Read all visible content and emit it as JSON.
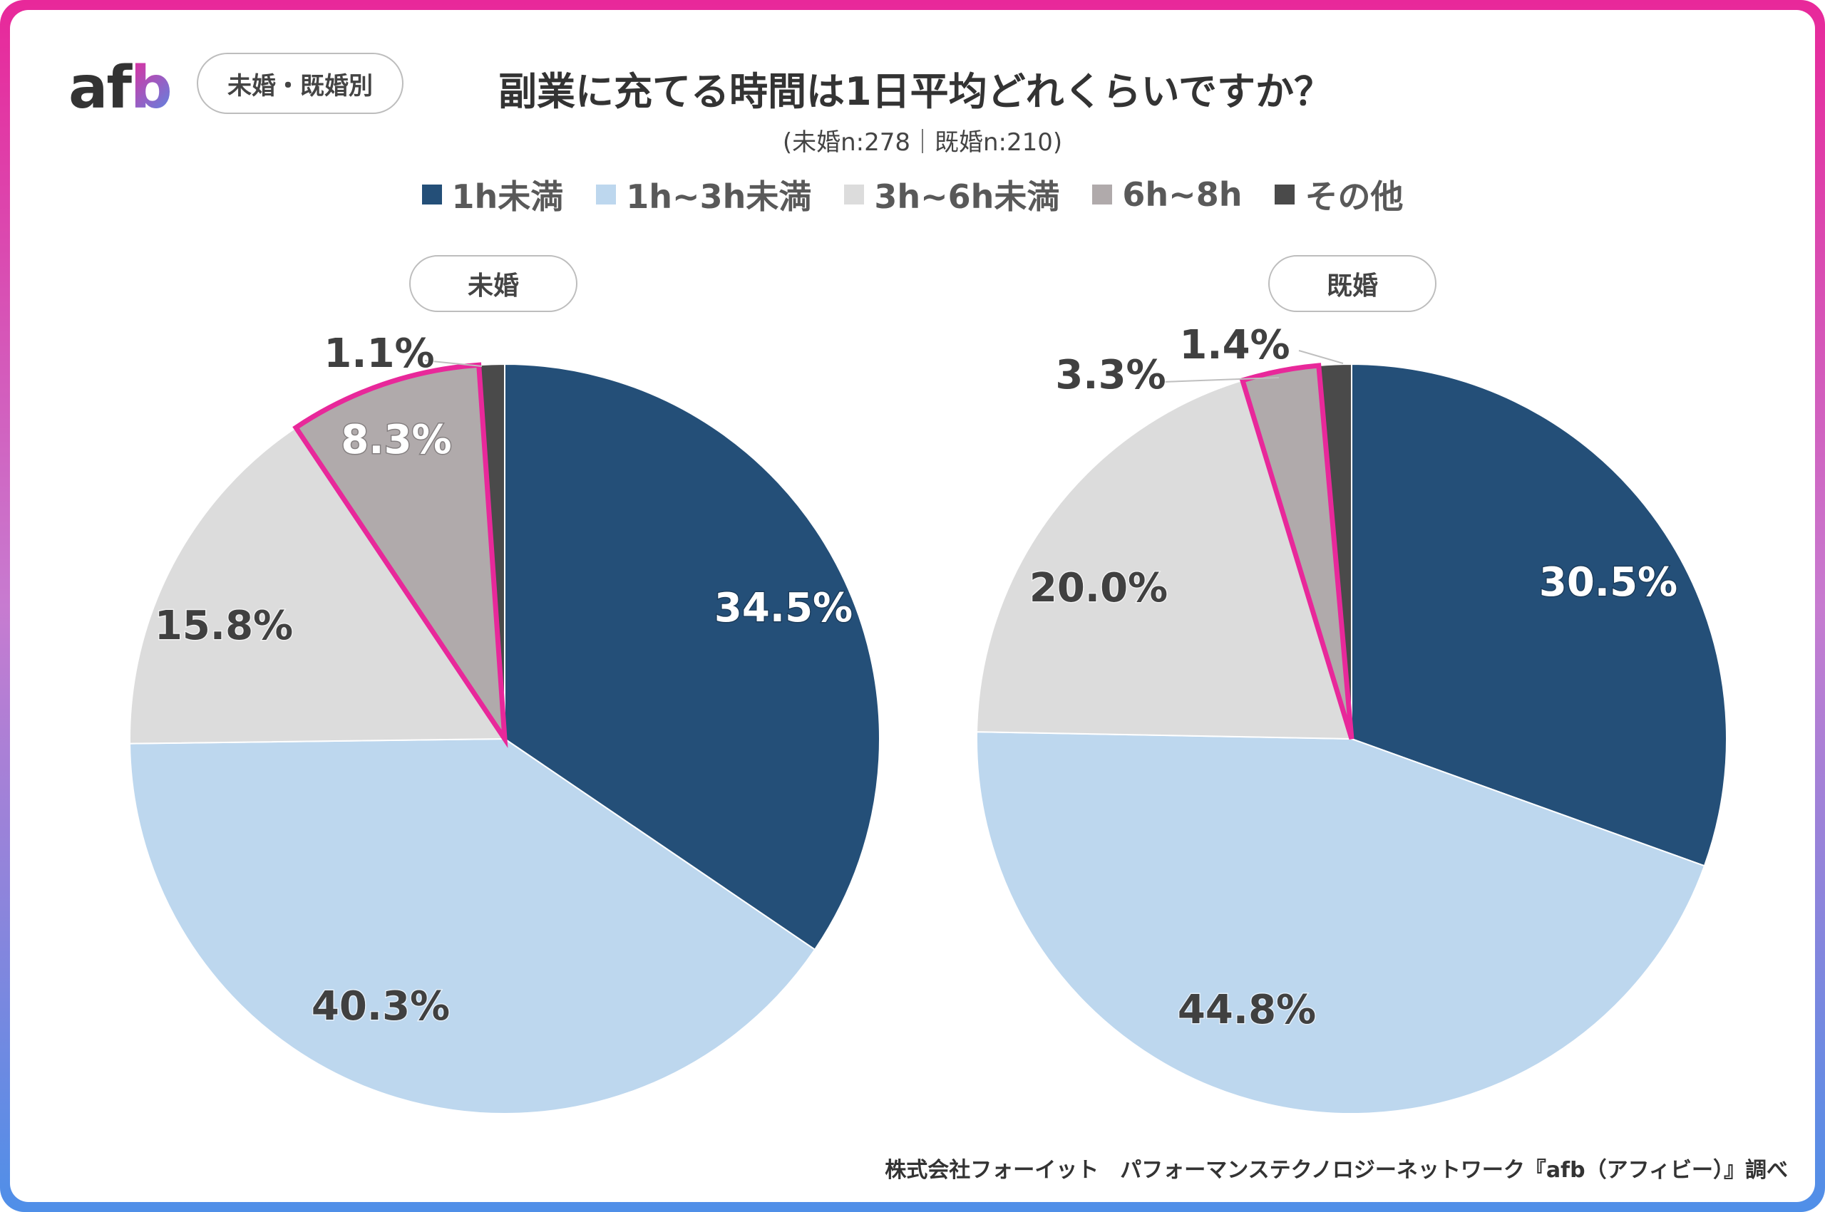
{
  "brand": {
    "logo_main": "af",
    "logo_accent": "b"
  },
  "tag_label": "未婚・既婚別",
  "title": "副業に充てる時間は1日平均どれくらいですか？",
  "subtitle": "(未婚n:278｜既婚n:210)",
  "legend": [
    {
      "label": "1h未満",
      "color": "#244f78"
    },
    {
      "label": "1h~3h未満",
      "color": "#bdd7ee"
    },
    {
      "label": "3h~6h未満",
      "color": "#dcdcdc"
    },
    {
      "label": "6h~8h",
      "color": "#b0aaab"
    },
    {
      "label": "その他",
      "color": "#4a4a4a"
    }
  ],
  "highlight_color": "#e8289a",
  "chart_data": [
    {
      "type": "pie",
      "title": "未婚",
      "categories": [
        "1h未満",
        "1h~3h未満",
        "3h~6h未満",
        "6h~8h",
        "その他"
      ],
      "values": [
        34.5,
        40.3,
        15.8,
        8.3,
        1.1
      ],
      "labels": [
        "34.5%",
        "40.3%",
        "15.8%",
        "8.3%",
        "1.1%"
      ],
      "highlighted": "6h~8h"
    },
    {
      "type": "pie",
      "title": "既婚",
      "categories": [
        "1h未満",
        "1h~3h未満",
        "3h~6h未満",
        "6h~8h",
        "その他"
      ],
      "values": [
        30.5,
        44.8,
        20.0,
        3.3,
        1.4
      ],
      "labels": [
        "30.5%",
        "44.8%",
        "20.0%",
        "3.3%",
        "1.4%"
      ],
      "highlighted": "6h~8h"
    }
  ],
  "footer": "株式会社フォーイット　パフォーマンステクノロジーネットワーク『afb（アフィビー）』調べ"
}
